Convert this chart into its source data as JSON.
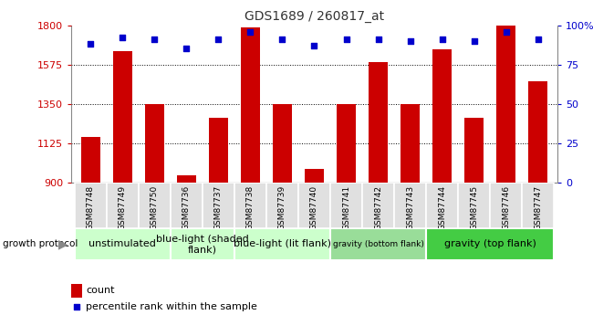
{
  "title": "GDS1689 / 260817_at",
  "samples": [
    "GSM87748",
    "GSM87749",
    "GSM87750",
    "GSM87736",
    "GSM87737",
    "GSM87738",
    "GSM87739",
    "GSM87740",
    "GSM87741",
    "GSM87742",
    "GSM87743",
    "GSM87744",
    "GSM87745",
    "GSM87746",
    "GSM87747"
  ],
  "counts": [
    1160,
    1650,
    1350,
    940,
    1270,
    1790,
    1350,
    980,
    1350,
    1590,
    1350,
    1660,
    1270,
    1800,
    1480
  ],
  "percentiles": [
    88,
    92,
    91,
    85,
    91,
    96,
    91,
    87,
    91,
    91,
    90,
    91,
    90,
    96,
    91
  ],
  "ylim": [
    900,
    1800
  ],
  "yticks": [
    900,
    1125,
    1350,
    1575,
    1800
  ],
  "y2lim": [
    0,
    100
  ],
  "y2ticks": [
    0,
    25,
    50,
    75,
    100
  ],
  "bar_color": "#cc0000",
  "dot_color": "#0000cc",
  "title_color": "#333333",
  "left_ytick_color": "#cc0000",
  "right_ytick_color": "#0000cc",
  "group_colors": [
    "#ccffcc",
    "#ccffcc",
    "#ccffcc",
    "#99dd99",
    "#44cc44"
  ],
  "group_labels": [
    "unstimulated",
    "blue-light (shaded\nflank)",
    "blue-light (lit flank)",
    "gravity (bottom flank)",
    "gravity (top flank)"
  ],
  "group_ranges": [
    [
      0,
      2
    ],
    [
      3,
      4
    ],
    [
      5,
      7
    ],
    [
      8,
      10
    ],
    [
      11,
      14
    ]
  ],
  "group_fontsizes": [
    8,
    8,
    8,
    6.5,
    8
  ],
  "legend_count_label": "count",
  "legend_pct_label": "percentile rank within the sample",
  "bg_color": "#e0e0e0"
}
